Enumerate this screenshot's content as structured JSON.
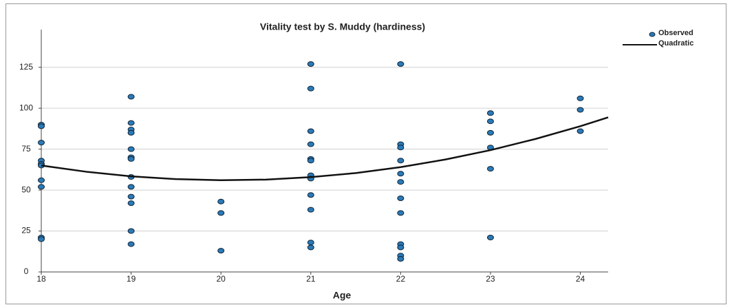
{
  "chart_data": {
    "type": "scatter",
    "title": "Vitality test by S. Muddy  (hardiness)",
    "xlabel": "Age",
    "xlim": [
      18,
      24.31
    ],
    "xticks": [
      18,
      19,
      20,
      21,
      22,
      23,
      24
    ],
    "ylim": [
      0,
      148
    ],
    "yticks": [
      0,
      25,
      50,
      75,
      100,
      125
    ],
    "grid": true,
    "legend": "top-right",
    "series": [
      {
        "name": "Observed",
        "type": "scatter",
        "color": "#2a7ab8",
        "x": [
          18,
          18,
          18,
          18,
          18,
          18,
          18,
          18,
          18,
          18,
          19,
          19,
          19,
          19,
          19,
          19,
          19,
          19,
          19,
          19,
          19,
          19,
          19,
          20,
          20,
          20,
          21,
          21,
          21,
          21,
          21,
          21,
          21,
          21,
          21,
          21,
          21,
          21,
          22,
          22,
          22,
          22,
          22,
          22,
          22,
          22,
          22,
          22,
          22,
          22,
          23,
          23,
          23,
          23,
          23,
          23,
          24,
          24,
          24
        ],
        "values": [
          90,
          89,
          79,
          68,
          66,
          65,
          56,
          52,
          21,
          20,
          107,
          91,
          87,
          85,
          75,
          70,
          69,
          58,
          52,
          46,
          42,
          25,
          17,
          43,
          36,
          13,
          127,
          112,
          86,
          78,
          69,
          68,
          59,
          57,
          47,
          38,
          18,
          15,
          127,
          78,
          76,
          68,
          60,
          55,
          45,
          36,
          17,
          15,
          10,
          8,
          97,
          92,
          85,
          76,
          63,
          21,
          106,
          99,
          86
        ]
      },
      {
        "name": "Quadratic",
        "type": "line",
        "color": "#111111",
        "x": [
          18,
          18.5,
          19,
          19.5,
          20,
          20.5,
          21,
          21.5,
          22,
          22.5,
          23,
          23.5,
          24,
          24.31
        ],
        "values": [
          65,
          61.2,
          58.4,
          56.7,
          56,
          56.4,
          57.9,
          60.4,
          64,
          68.7,
          74.4,
          81.2,
          89,
          94.4
        ]
      }
    ]
  }
}
